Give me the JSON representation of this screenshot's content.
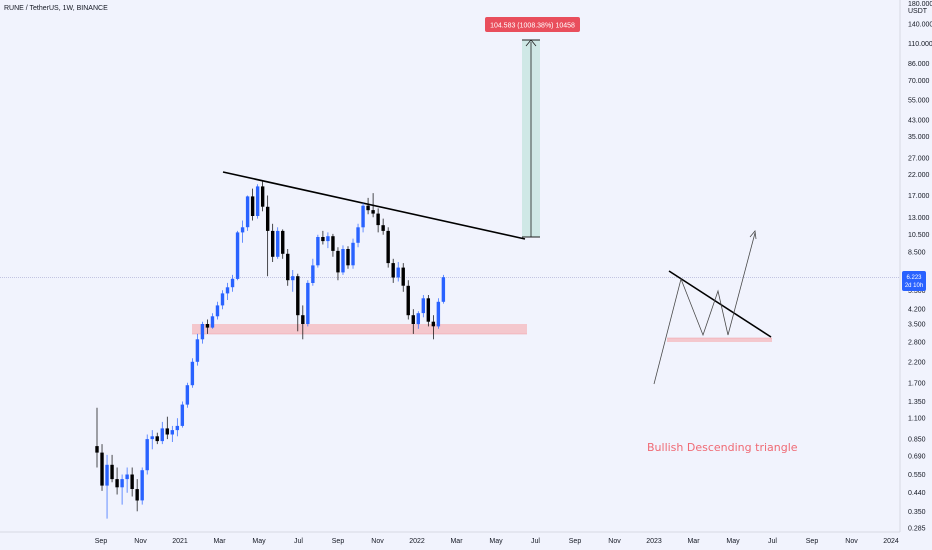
{
  "header": {
    "symbol": "RUNE / TetherUS, 1W, BINANCE"
  },
  "annotation": {
    "text": "Bullish Descending triangle"
  },
  "measure": {
    "label": "104.583 (1008.38%) 10458"
  },
  "price_scale": {
    "label_top": "USDT",
    "price": "6.223",
    "countdown": "2d 10h"
  },
  "colors": {
    "up": "#2962ff",
    "down": "#000000",
    "background": "#f1f3fd",
    "support_zone": "#f4c7cd",
    "measure_box": "#cfe8e6",
    "annotation": "#f06a74"
  },
  "chart_data": {
    "type": "candlestick",
    "title": "RUNE / TetherUS, 1W, BINANCE",
    "y_scale": "log",
    "x_ticks": [
      "Sep",
      "Nov",
      "2021",
      "Mar",
      "May",
      "Jul",
      "Sep",
      "Nov",
      "2022",
      "Mar",
      "May",
      "Jul",
      "Sep",
      "Nov",
      "2023",
      "Mar",
      "May",
      "Jul",
      "Sep",
      "Nov",
      "2024"
    ],
    "y_ticks": [
      180.0,
      140.0,
      110.0,
      86.0,
      70.0,
      55.0,
      43.0,
      35.0,
      27.0,
      22.0,
      17.0,
      13.0,
      10.5,
      8.5,
      6.5,
      5.3,
      4.2,
      3.5,
      2.8,
      2.2,
      1.7,
      1.35,
      1.1,
      0.85,
      0.69,
      0.55,
      0.44,
      0.35,
      0.285
    ],
    "y_tick_labels": [
      "180.000",
      "140.000",
      "110.000",
      "86.000",
      "70.000",
      "55.000",
      "43.000",
      "35.000",
      "27.000",
      "22.000",
      "17.000",
      "13.000",
      "10.500",
      "8.500",
      "6.500",
      "5.300",
      "4.200",
      "3.500",
      "2.800",
      "2.200",
      "1.700",
      "1.350",
      "1.100",
      "0.850",
      "0.690",
      "0.550",
      "0.440",
      "0.350",
      "0.285"
    ],
    "last_price": 6.223,
    "candles": [
      {
        "o": 0.78,
        "h": 1.25,
        "l": 0.6,
        "c": 0.72
      },
      {
        "o": 0.72,
        "h": 0.8,
        "l": 0.45,
        "c": 0.48
      },
      {
        "o": 0.48,
        "h": 0.7,
        "l": 0.32,
        "c": 0.62
      },
      {
        "o": 0.62,
        "h": 0.7,
        "l": 0.5,
        "c": 0.52
      },
      {
        "o": 0.52,
        "h": 0.6,
        "l": 0.43,
        "c": 0.47
      },
      {
        "o": 0.47,
        "h": 0.55,
        "l": 0.38,
        "c": 0.52
      },
      {
        "o": 0.52,
        "h": 0.6,
        "l": 0.44,
        "c": 0.55
      },
      {
        "o": 0.55,
        "h": 0.6,
        "l": 0.42,
        "c": 0.46
      },
      {
        "o": 0.46,
        "h": 0.52,
        "l": 0.35,
        "c": 0.4
      },
      {
        "o": 0.4,
        "h": 0.6,
        "l": 0.38,
        "c": 0.58
      },
      {
        "o": 0.58,
        "h": 0.9,
        "l": 0.55,
        "c": 0.85
      },
      {
        "o": 0.85,
        "h": 0.95,
        "l": 0.75,
        "c": 0.88
      },
      {
        "o": 0.88,
        "h": 0.92,
        "l": 0.8,
        "c": 0.83
      },
      {
        "o": 0.83,
        "h": 1.05,
        "l": 0.8,
        "c": 0.97
      },
      {
        "o": 0.97,
        "h": 1.12,
        "l": 0.85,
        "c": 0.9
      },
      {
        "o": 0.9,
        "h": 1.0,
        "l": 0.82,
        "c": 0.95
      },
      {
        "o": 0.95,
        "h": 1.1,
        "l": 0.88,
        "c": 1.0
      },
      {
        "o": 1.0,
        "h": 1.35,
        "l": 0.98,
        "c": 1.3
      },
      {
        "o": 1.3,
        "h": 1.7,
        "l": 1.25,
        "c": 1.65
      },
      {
        "o": 1.65,
        "h": 2.3,
        "l": 1.6,
        "c": 2.2
      },
      {
        "o": 2.2,
        "h": 3.1,
        "l": 2.1,
        "c": 2.9
      },
      {
        "o": 2.9,
        "h": 3.6,
        "l": 2.75,
        "c": 3.5
      },
      {
        "o": 3.5,
        "h": 3.7,
        "l": 3.1,
        "c": 3.35
      },
      {
        "o": 3.35,
        "h": 4.0,
        "l": 3.3,
        "c": 3.85
      },
      {
        "o": 3.85,
        "h": 4.6,
        "l": 3.7,
        "c": 4.4
      },
      {
        "o": 4.4,
        "h": 5.3,
        "l": 4.2,
        "c": 5.1
      },
      {
        "o": 5.1,
        "h": 5.8,
        "l": 4.7,
        "c": 5.5
      },
      {
        "o": 5.5,
        "h": 6.4,
        "l": 5.2,
        "c": 6.1
      },
      {
        "o": 6.1,
        "h": 11.0,
        "l": 6.0,
        "c": 10.8
      },
      {
        "o": 10.8,
        "h": 12.5,
        "l": 9.5,
        "c": 11.5
      },
      {
        "o": 11.5,
        "h": 17.0,
        "l": 11.0,
        "c": 16.8
      },
      {
        "o": 16.8,
        "h": 18.5,
        "l": 12.5,
        "c": 13.2
      },
      {
        "o": 13.2,
        "h": 19.5,
        "l": 12.8,
        "c": 19.0
      },
      {
        "o": 19.0,
        "h": 20.5,
        "l": 14.0,
        "c": 14.8
      },
      {
        "o": 14.8,
        "h": 17.0,
        "l": 6.3,
        "c": 11.0
      },
      {
        "o": 11.0,
        "h": 12.0,
        "l": 7.5,
        "c": 8.0
      },
      {
        "o": 8.0,
        "h": 11.5,
        "l": 7.8,
        "c": 11.0
      },
      {
        "o": 11.0,
        "h": 11.2,
        "l": 7.8,
        "c": 8.3
      },
      {
        "o": 8.3,
        "h": 8.8,
        "l": 5.6,
        "c": 6.0
      },
      {
        "o": 6.0,
        "h": 6.8,
        "l": 5.2,
        "c": 6.3
      },
      {
        "o": 6.3,
        "h": 6.5,
        "l": 3.2,
        "c": 3.9
      },
      {
        "o": 3.9,
        "h": 4.4,
        "l": 2.9,
        "c": 3.5
      },
      {
        "o": 3.5,
        "h": 6.0,
        "l": 3.4,
        "c": 5.8
      },
      {
        "o": 5.8,
        "h": 7.8,
        "l": 5.6,
        "c": 7.2
      },
      {
        "o": 7.2,
        "h": 10.5,
        "l": 7.0,
        "c": 10.2
      },
      {
        "o": 10.2,
        "h": 11.0,
        "l": 9.3,
        "c": 9.7
      },
      {
        "o": 9.7,
        "h": 10.8,
        "l": 8.9,
        "c": 10.3
      },
      {
        "o": 10.3,
        "h": 10.6,
        "l": 8.0,
        "c": 8.6
      },
      {
        "o": 8.6,
        "h": 9.0,
        "l": 6.0,
        "c": 6.6
      },
      {
        "o": 6.6,
        "h": 9.2,
        "l": 6.4,
        "c": 8.8
      },
      {
        "o": 8.8,
        "h": 9.1,
        "l": 6.9,
        "c": 7.2
      },
      {
        "o": 7.2,
        "h": 10.0,
        "l": 6.9,
        "c": 9.5
      },
      {
        "o": 9.5,
        "h": 12.0,
        "l": 9.0,
        "c": 11.5
      },
      {
        "o": 11.5,
        "h": 15.5,
        "l": 10.8,
        "c": 15.0
      },
      {
        "o": 15.0,
        "h": 16.5,
        "l": 13.5,
        "c": 14.2
      },
      {
        "o": 14.2,
        "h": 17.5,
        "l": 13.0,
        "c": 13.6
      },
      {
        "o": 13.6,
        "h": 14.5,
        "l": 10.8,
        "c": 11.8
      },
      {
        "o": 11.8,
        "h": 12.8,
        "l": 10.5,
        "c": 11.0
      },
      {
        "o": 11.0,
        "h": 11.5,
        "l": 7.0,
        "c": 7.4
      },
      {
        "o": 7.4,
        "h": 7.8,
        "l": 5.8,
        "c": 6.2
      },
      {
        "o": 6.2,
        "h": 7.5,
        "l": 5.9,
        "c": 7.0
      },
      {
        "o": 7.0,
        "h": 7.4,
        "l": 5.2,
        "c": 5.6
      },
      {
        "o": 5.6,
        "h": 6.0,
        "l": 3.7,
        "c": 3.9
      },
      {
        "o": 3.9,
        "h": 4.2,
        "l": 3.1,
        "c": 3.5
      },
      {
        "o": 3.5,
        "h": 4.1,
        "l": 3.3,
        "c": 4.0
      },
      {
        "o": 4.0,
        "h": 5.0,
        "l": 3.8,
        "c": 4.8
      },
      {
        "o": 4.8,
        "h": 5.0,
        "l": 3.4,
        "c": 3.6
      },
      {
        "o": 3.6,
        "h": 3.9,
        "l": 2.9,
        "c": 3.4
      },
      {
        "o": 3.4,
        "h": 4.8,
        "l": 3.3,
        "c": 4.6
      },
      {
        "o": 4.6,
        "h": 6.4,
        "l": 4.5,
        "c": 6.223
      }
    ]
  }
}
